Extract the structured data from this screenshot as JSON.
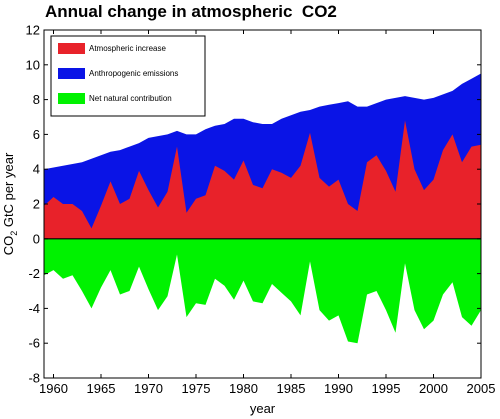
{
  "chart_data": {
    "type": "area",
    "title": "Annual change in atmospheric  CO2",
    "xlabel": "year",
    "ylabel_main": "CO",
    "ylabel_sub": "2",
    "ylabel_rest": " GtC per year",
    "xlim": [
      1959,
      2005
    ],
    "ylim": [
      -8,
      12
    ],
    "xticks": [
      1960,
      1965,
      1970,
      1975,
      1980,
      1985,
      1990,
      1995,
      2000,
      2005
    ],
    "yticks": [
      -8,
      -6,
      -4,
      -2,
      0,
      2,
      4,
      6,
      8,
      10,
      12
    ],
    "legend_position": "top-left",
    "years": [
      1959,
      1960,
      1961,
      1962,
      1963,
      1964,
      1965,
      1966,
      1967,
      1968,
      1969,
      1970,
      1971,
      1972,
      1973,
      1974,
      1975,
      1976,
      1977,
      1978,
      1979,
      1980,
      1981,
      1982,
      1983,
      1984,
      1985,
      1986,
      1987,
      1988,
      1989,
      1990,
      1991,
      1992,
      1993,
      1994,
      1995,
      1996,
      1997,
      1998,
      1999,
      2000,
      2001,
      2002,
      2003,
      2004,
      2005
    ],
    "series": [
      {
        "name": "Anthropogenic emissions",
        "color": "#0a14e6",
        "values": [
          4.0,
          4.1,
          4.2,
          4.3,
          4.4,
          4.6,
          4.8,
          5.0,
          5.1,
          5.3,
          5.5,
          5.8,
          5.9,
          6.0,
          6.2,
          6.0,
          6.0,
          6.3,
          6.5,
          6.6,
          6.9,
          6.9,
          6.7,
          6.6,
          6.6,
          6.9,
          7.1,
          7.3,
          7.4,
          7.6,
          7.7,
          7.8,
          7.9,
          7.6,
          7.6,
          7.8,
          8.0,
          8.1,
          8.2,
          8.1,
          8.0,
          8.1,
          8.3,
          8.5,
          8.9,
          9.2,
          9.5
        ]
      },
      {
        "name": "Atmospheric increase",
        "color": "#e8222a",
        "values": [
          1.9,
          2.4,
          2.0,
          2.0,
          1.6,
          0.6,
          1.9,
          3.3,
          2.0,
          2.3,
          3.9,
          2.8,
          1.8,
          2.7,
          5.3,
          1.5,
          2.3,
          2.5,
          4.2,
          3.9,
          3.4,
          4.5,
          3.1,
          2.9,
          4.0,
          3.8,
          3.5,
          4.2,
          6.1,
          3.5,
          3.0,
          3.4,
          2.0,
          1.6,
          4.4,
          4.8,
          3.9,
          2.7,
          6.8,
          4.0,
          2.8,
          3.4,
          5.1,
          6.0,
          4.4,
          5.3,
          5.4
        ]
      },
      {
        "name": "Net natural contribution",
        "color": "#00f200",
        "values": [
          -2.1,
          -1.8,
          -2.3,
          -2.1,
          -3.0,
          -4.0,
          -2.8,
          -1.8,
          -3.2,
          -3.0,
          -1.6,
          -2.9,
          -4.1,
          -3.3,
          -0.9,
          -4.5,
          -3.7,
          -3.8,
          -2.3,
          -2.7,
          -3.5,
          -2.4,
          -3.6,
          -3.7,
          -2.6,
          -3.1,
          -3.6,
          -4.4,
          -1.3,
          -4.1,
          -4.7,
          -4.4,
          -5.9,
          -6.0,
          -3.2,
          -3.0,
          -4.1,
          -5.4,
          -1.4,
          -4.1,
          -5.2,
          -4.7,
          -3.2,
          -2.5,
          -4.5,
          -5.0,
          -4.1
        ]
      }
    ]
  }
}
